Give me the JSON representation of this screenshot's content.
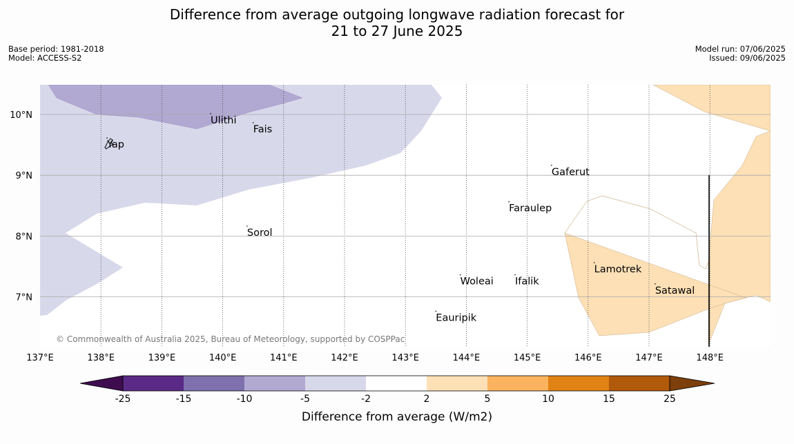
{
  "title_line1": "Difference from average outgoing longwave radiation forecast for",
  "title_line2": "21 to 27 June 2025",
  "meta_left": {
    "base_period": "Base period: 1981-2018",
    "model": "Model: ACCESS-S2"
  },
  "meta_right": {
    "model_run": "Model run: 07/06/2025",
    "issued": "Issued: 09/06/2025"
  },
  "copyright": "© Commonwealth of Australia 2025, Bureau of Meteorology, supported by COSPPac",
  "lon_ticks": [
    "137°E",
    "138°E",
    "139°E",
    "140°E",
    "141°E",
    "142°E",
    "143°E",
    "144°E",
    "145°E",
    "146°E",
    "147°E",
    "148°E"
  ],
  "lat_ticks": [
    "10°N",
    "9°N",
    "8°N",
    "7°N"
  ],
  "places": [
    {
      "name": "Ulithi",
      "lon": 139.8,
      "lat": 9.9
    },
    {
      "name": "Fais",
      "lon": 140.5,
      "lat": 9.75
    },
    {
      "name": "Yap",
      "lon": 138.1,
      "lat": 9.5
    },
    {
      "name": "Gaferut",
      "lon": 145.4,
      "lat": 9.05
    },
    {
      "name": "Faraulep",
      "lon": 144.7,
      "lat": 8.45
    },
    {
      "name": "Sorol",
      "lon": 140.4,
      "lat": 8.05
    },
    {
      "name": "Lamotrek",
      "lon": 146.1,
      "lat": 7.45
    },
    {
      "name": "Woleai",
      "lon": 143.9,
      "lat": 7.25
    },
    {
      "name": "Ifalik",
      "lon": 144.8,
      "lat": 7.25
    },
    {
      "name": "Satawal",
      "lon": 147.1,
      "lat": 7.1
    },
    {
      "name": "Eauripik",
      "lon": 143.5,
      "lat": 6.65
    }
  ],
  "colorbar": {
    "label": "Difference from average (W/m2)",
    "ticks": [
      "-25",
      "-15",
      "-10",
      "-5",
      "-2",
      "2",
      "5",
      "10",
      "15",
      "25"
    ],
    "colors": [
      "#3f0d4f",
      "#5b2a86",
      "#7f71ae",
      "#b1a9d2",
      "#d8d8eb",
      "#ffffff",
      "#fde0b6",
      "#fbb35f",
      "#e08214",
      "#b25a0b",
      "#7d3f0c"
    ]
  }
}
